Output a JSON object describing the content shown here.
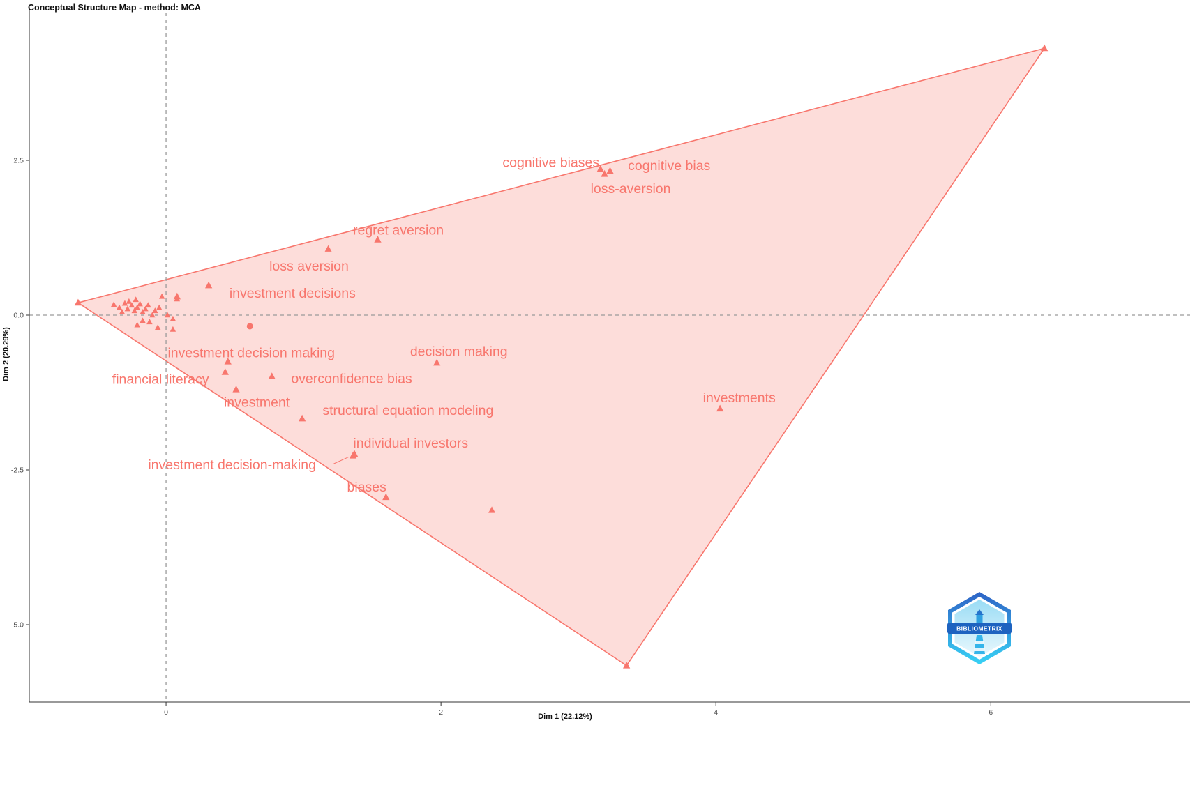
{
  "title": "Conceptual Structure Map - method: MCA",
  "logo": {
    "text": "BIBLIOMETRIX"
  },
  "chart_data": {
    "type": "scatter",
    "title": "Conceptual Structure Map - method: MCA",
    "xlabel": "Dim 1 (22.12%)",
    "ylabel": "Dim 2 (20.29%)",
    "xlim": [
      -0.995,
      7.45
    ],
    "ylim": [
      -6.25,
      5.0
    ],
    "x_ticks": [
      {
        "v": 0,
        "label": "0"
      },
      {
        "v": 2,
        "label": "2"
      },
      {
        "v": 4,
        "label": "4"
      },
      {
        "v": 6,
        "label": "6"
      }
    ],
    "y_ticks": [
      {
        "v": 2.5,
        "label": "2.5"
      },
      {
        "v": 0,
        "label": "0.0"
      },
      {
        "v": -2.5,
        "label": "-2.5"
      },
      {
        "v": -5,
        "label": "-5.0"
      }
    ],
    "grid": false,
    "legend": "none",
    "point_color": "#F8766D",
    "hull_fill_color": "#F8766D",
    "hull_fill_opacity": 0.25,
    "reference_lines": {
      "x": 0,
      "y": 0,
      "style": "dashed",
      "color": "#9a9a9a"
    },
    "hull": [
      [
        -0.64,
        0.2
      ],
      [
        6.39,
        4.31
      ],
      [
        3.35,
        -5.66
      ]
    ],
    "hull_vertex_points": [
      [
        -0.64,
        0.2
      ],
      [
        6.39,
        4.31
      ],
      [
        3.35,
        -5.66
      ]
    ],
    "labeled_points": [
      {
        "label": "cognitive biases",
        "x": 3.16,
        "y": 2.36,
        "lx": 2.8,
        "ly": 2.47
      },
      {
        "label": "cognitive bias",
        "x": 3.23,
        "y": 2.33,
        "lx": 3.66,
        "ly": 2.42
      },
      {
        "label": "loss-aversion",
        "x": 3.19,
        "y": 2.28,
        "lx": 3.38,
        "ly": 2.05
      },
      {
        "label": "regret aversion",
        "x": 1.54,
        "y": 1.22,
        "lx": 1.69,
        "ly": 1.38
      },
      {
        "label": "loss aversion",
        "x": 0.31,
        "y": 0.48,
        "lx": 1.04,
        "ly": 0.8
      },
      {
        "label": "investment decisions",
        "x": 0.08,
        "y": 0.3,
        "lx": 0.92,
        "ly": 0.36
      },
      {
        "label": "investment decision making",
        "x": 0.45,
        "y": -0.75,
        "lx": 0.62,
        "ly": -0.6
      },
      {
        "label": "decision making",
        "x": 1.97,
        "y": -0.77,
        "lx": 2.13,
        "ly": -0.58
      },
      {
        "label": "financial literacy",
        "x": 0.43,
        "y": -0.92,
        "lx": -0.04,
        "ly": -1.03
      },
      {
        "label": "overconfidence bias",
        "x": 0.77,
        "y": -0.99,
        "lx": 1.35,
        "ly": -1.02
      },
      {
        "label": "investment",
        "x": 0.51,
        "y": -1.2,
        "lx": 0.66,
        "ly": -1.4
      },
      {
        "label": "structural equation modeling",
        "x": 0.99,
        "y": -1.67,
        "lx": 1.76,
        "ly": -1.53
      },
      {
        "label": "investments",
        "x": 4.03,
        "y": -1.51,
        "lx": 4.17,
        "ly": -1.33
      },
      {
        "label": "individual investors",
        "x": 1.37,
        "y": -2.24,
        "lx": 1.78,
        "ly": -2.06
      },
      {
        "label": "investment decision-making",
        "x": 1.36,
        "y": -2.27,
        "lx": 0.48,
        "ly": -2.41,
        "leader": [
          [
            1.22,
            -2.4
          ],
          [
            1.33,
            -2.29
          ]
        ]
      },
      {
        "label": "biases",
        "x": 1.6,
        "y": -2.94,
        "lx": 1.46,
        "ly": -2.77
      }
    ],
    "unlabeled_points": [
      [
        1.18,
        1.07
      ],
      [
        2.37,
        -3.15
      ]
    ],
    "centroid_point": {
      "x": 0.61,
      "y": -0.18,
      "shape": "circle"
    },
    "cluster_points": [
      [
        -0.38,
        0.17
      ],
      [
        -0.34,
        0.12
      ],
      [
        -0.32,
        0.05
      ],
      [
        -0.3,
        0.19
      ],
      [
        -0.28,
        0.1
      ],
      [
        -0.27,
        0.22
      ],
      [
        -0.25,
        0.16
      ],
      [
        -0.23,
        0.07
      ],
      [
        -0.22,
        0.25
      ],
      [
        -0.21,
        0.12
      ],
      [
        -0.19,
        0.18
      ],
      [
        -0.17,
        0.05
      ],
      [
        -0.15,
        0.1
      ],
      [
        -0.13,
        0.16
      ],
      [
        -0.1,
        0.0
      ],
      [
        -0.08,
        0.07
      ],
      [
        -0.05,
        0.12
      ],
      [
        -0.03,
        0.3
      ],
      [
        0.01,
        0.0
      ],
      [
        0.05,
        -0.06
      ],
      [
        0.08,
        0.26
      ],
      [
        -0.12,
        -0.11
      ],
      [
        -0.17,
        -0.09
      ],
      [
        -0.21,
        -0.16
      ],
      [
        -0.06,
        -0.2
      ],
      [
        0.05,
        -0.23
      ]
    ]
  }
}
